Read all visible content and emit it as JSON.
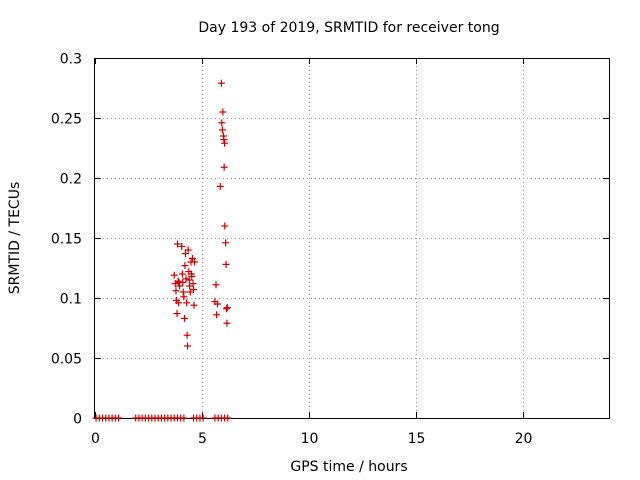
{
  "chart_data": {
    "type": "scatter",
    "title": "Day 193 of 2019, SRMTID for receiver tong",
    "xlabel": "GPS time / hours",
    "ylabel": "SRMTID / TECUs",
    "xlim": [
      0,
      24
    ],
    "ylim": [
      0,
      0.3
    ],
    "xticks": [
      "0",
      "5",
      "10",
      "15",
      "20"
    ],
    "yticks": [
      "0",
      "0.05",
      "0.1",
      "0.15",
      "0.2",
      "0.25",
      "0.3"
    ],
    "grid": true,
    "marker": "plus",
    "color": "#cc0000",
    "points": [
      [
        0.05,
        0
      ],
      [
        0.2,
        0
      ],
      [
        0.35,
        0
      ],
      [
        0.5,
        0
      ],
      [
        0.65,
        0
      ],
      [
        0.8,
        0
      ],
      [
        0.95,
        0
      ],
      [
        1.1,
        0
      ],
      [
        1.9,
        0
      ],
      [
        2.05,
        0
      ],
      [
        2.2,
        0
      ],
      [
        2.35,
        0
      ],
      [
        2.5,
        0
      ],
      [
        2.65,
        0
      ],
      [
        2.8,
        0
      ],
      [
        2.95,
        0
      ],
      [
        3.1,
        0
      ],
      [
        3.25,
        0
      ],
      [
        3.4,
        0
      ],
      [
        3.55,
        0
      ],
      [
        3.7,
        0
      ],
      [
        3.85,
        0
      ],
      [
        4.0,
        0
      ],
      [
        4.15,
        0
      ],
      [
        4.6,
        0
      ],
      [
        4.75,
        0
      ],
      [
        4.9,
        0
      ],
      [
        5.05,
        0
      ],
      [
        5.6,
        0
      ],
      [
        5.75,
        0
      ],
      [
        5.9,
        0
      ],
      [
        6.05,
        0
      ],
      [
        6.2,
        0
      ],
      [
        3.7,
        0.119
      ],
      [
        3.75,
        0.112
      ],
      [
        3.78,
        0.106
      ],
      [
        3.8,
        0.098
      ],
      [
        3.83,
        0.087
      ],
      [
        3.85,
        0.145
      ],
      [
        3.88,
        0.114
      ],
      [
        3.9,
        0.096
      ],
      [
        3.92,
        0.113
      ],
      [
        3.95,
        0.11
      ],
      [
        4.05,
        0.143
      ],
      [
        4.08,
        0.12
      ],
      [
        4.1,
        0.113
      ],
      [
        4.12,
        0.105
      ],
      [
        4.15,
        0.101
      ],
      [
        4.18,
        0.083
      ],
      [
        4.2,
        0.127
      ],
      [
        4.22,
        0.137
      ],
      [
        4.25,
        0.116
      ],
      [
        4.28,
        0.096
      ],
      [
        4.3,
        0.069
      ],
      [
        4.32,
        0.06
      ],
      [
        4.35,
        0.14
      ],
      [
        4.38,
        0.122
      ],
      [
        4.4,
        0.115
      ],
      [
        4.42,
        0.11
      ],
      [
        4.45,
        0.105
      ],
      [
        4.48,
        0.13
      ],
      [
        4.5,
        0.12
      ],
      [
        4.52,
        0.118
      ],
      [
        4.55,
        0.133
      ],
      [
        4.58,
        0.112
      ],
      [
        4.6,
        0.107
      ],
      [
        4.62,
        0.094
      ],
      [
        4.65,
        0.13
      ],
      [
        5.6,
        0.097
      ],
      [
        5.65,
        0.111
      ],
      [
        5.68,
        0.086
      ],
      [
        5.72,
        0.095
      ],
      [
        5.85,
        0.193
      ],
      [
        5.9,
        0.279
      ],
      [
        5.92,
        0.246
      ],
      [
        5.95,
        0.24
      ],
      [
        5.97,
        0.255
      ],
      [
        6.0,
        0.235
      ],
      [
        6.02,
        0.232
      ],
      [
        6.05,
        0.229
      ],
      [
        6.03,
        0.209
      ],
      [
        6.06,
        0.16
      ],
      [
        6.1,
        0.146
      ],
      [
        6.12,
        0.128
      ],
      [
        6.14,
        0.091
      ],
      [
        6.16,
        0.079
      ],
      [
        6.18,
        0.092
      ]
    ]
  }
}
